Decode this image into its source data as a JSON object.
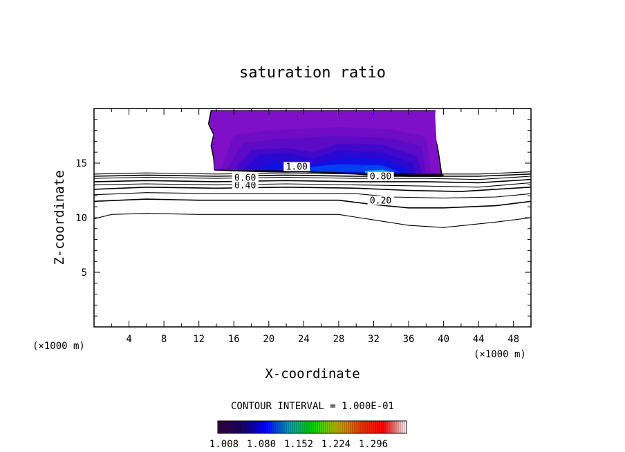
{
  "chart_data": {
    "type": "contour",
    "title": "saturation ratio",
    "xlabel": "X-coordinate",
    "ylabel": "Z-coordinate",
    "x_unit": "(×1000 m)",
    "z_unit": "(×1000 m)",
    "xlim": [
      0,
      50
    ],
    "ylim": [
      0,
      20
    ],
    "x_ticks": [
      "4",
      "8",
      "12",
      "16",
      "20",
      "24",
      "28",
      "32",
      "36",
      "40",
      "44",
      "48"
    ],
    "y_ticks": [
      "5",
      "10",
      "15"
    ],
    "contour_interval_text": "CONTOUR INTERVAL = 1.000E-01",
    "colorbar": {
      "tick_labels": [
        "1.008",
        "1.080",
        "1.152",
        "1.224",
        "1.296"
      ],
      "colors": [
        "#3a003a",
        "#1a0070",
        "#0000ff",
        "#00a0c0",
        "#00e000",
        "#c0c000",
        "#ff4000",
        "#ff0000",
        "#ffffff"
      ]
    },
    "contour_lines": [
      {
        "level": 0.1,
        "label": "",
        "points": [
          [
            0,
            9.9
          ],
          [
            2,
            10.3
          ],
          [
            6,
            10.4
          ],
          [
            12,
            10.3
          ],
          [
            20,
            10.3
          ],
          [
            28,
            10.3
          ],
          [
            32,
            9.8
          ],
          [
            36,
            9.3
          ],
          [
            40,
            9.1
          ],
          [
            46,
            9.6
          ],
          [
            50,
            10.0
          ]
        ]
      },
      {
        "level": 0.2,
        "label": "0.20",
        "points": [
          [
            0,
            11.5
          ],
          [
            6,
            11.7
          ],
          [
            12,
            11.6
          ],
          [
            20,
            11.6
          ],
          [
            28,
            11.6
          ],
          [
            32,
            11.2
          ],
          [
            36,
            10.9
          ],
          [
            40,
            10.9
          ],
          [
            46,
            11.1
          ],
          [
            50,
            11.5
          ]
        ]
      },
      {
        "level": 0.3,
        "label": "",
        "points": [
          [
            0,
            12.1
          ],
          [
            6,
            12.3
          ],
          [
            14,
            12.2
          ],
          [
            22,
            12.2
          ],
          [
            30,
            12.2
          ],
          [
            34,
            11.9
          ],
          [
            40,
            11.8
          ],
          [
            46,
            11.9
          ],
          [
            50,
            12.2
          ]
        ]
      },
      {
        "level": 0.4,
        "label": "0.40",
        "points": [
          [
            0,
            12.6
          ],
          [
            6,
            12.8
          ],
          [
            14,
            12.7
          ],
          [
            22,
            12.8
          ],
          [
            30,
            12.7
          ],
          [
            36,
            12.5
          ],
          [
            42,
            12.4
          ],
          [
            50,
            12.8
          ]
        ]
      },
      {
        "level": 0.5,
        "label": "",
        "points": [
          [
            0,
            13.0
          ],
          [
            6,
            13.1
          ],
          [
            14,
            13.0
          ],
          [
            22,
            13.1
          ],
          [
            30,
            13.0
          ],
          [
            38,
            12.9
          ],
          [
            44,
            12.8
          ],
          [
            50,
            13.2
          ]
        ]
      },
      {
        "level": 0.6,
        "label": "0.60",
        "points": [
          [
            0,
            13.3
          ],
          [
            6,
            13.4
          ],
          [
            14,
            13.3
          ],
          [
            22,
            13.4
          ],
          [
            30,
            13.3
          ],
          [
            38,
            13.3
          ],
          [
            44,
            13.2
          ],
          [
            50,
            13.5
          ]
        ]
      },
      {
        "level": 0.7,
        "label": "",
        "points": [
          [
            0,
            13.6
          ],
          [
            6,
            13.7
          ],
          [
            14,
            13.6
          ],
          [
            22,
            13.7
          ],
          [
            30,
            13.6
          ],
          [
            38,
            13.6
          ],
          [
            44,
            13.5
          ],
          [
            50,
            13.8
          ]
        ]
      },
      {
        "level": 0.8,
        "label": "0.80",
        "points": [
          [
            0,
            13.8
          ],
          [
            6,
            13.9
          ],
          [
            14,
            13.8
          ],
          [
            22,
            13.9
          ],
          [
            30,
            13.8
          ],
          [
            38,
            13.8
          ],
          [
            44,
            13.8
          ],
          [
            50,
            14.0
          ]
        ]
      },
      {
        "level": 0.9,
        "label": "",
        "points": [
          [
            0,
            14.0
          ],
          [
            6,
            14.1
          ],
          [
            14,
            14.0
          ],
          [
            22,
            14.1
          ],
          [
            30,
            14.0
          ],
          [
            38,
            14.0
          ],
          [
            44,
            14.0
          ],
          [
            50,
            14.2
          ]
        ]
      },
      {
        "level": 1.0,
        "label": "1.00",
        "points": [
          [
            13.8,
            14.4
          ],
          [
            16,
            14.3
          ],
          [
            20,
            14.3
          ],
          [
            24,
            14.2
          ],
          [
            28,
            14.1
          ],
          [
            32,
            14.0
          ],
          [
            36,
            13.9
          ],
          [
            40,
            13.9
          ]
        ]
      }
    ],
    "contour_labels": [
      {
        "text": "0.20",
        "x": 32.8,
        "y": 11.3
      },
      {
        "text": "0.40",
        "x": 17.3,
        "y": 12.7
      },
      {
        "text": "0.60",
        "x": 17.3,
        "y": 13.4
      },
      {
        "text": "0.80",
        "x": 32.8,
        "y": 13.5
      },
      {
        "text": "1.00",
        "x": 23.2,
        "y": 14.4
      }
    ],
    "shaded_region": {
      "boundary": [
        [
          13.8,
          14.4
        ],
        [
          13.7,
          15.4
        ],
        [
          13.4,
          16.6
        ],
        [
          13.7,
          17.6
        ],
        [
          13.1,
          18.6
        ],
        [
          13.4,
          19.8
        ],
        [
          39.0,
          19.8
        ],
        [
          38.8,
          18.0
        ],
        [
          39.3,
          16.5
        ],
        [
          39.6,
          15.0
        ],
        [
          39.8,
          13.8
        ],
        [
          36,
          13.8
        ],
        [
          32,
          13.9
        ],
        [
          28,
          14.1
        ],
        [
          24,
          14.2
        ],
        [
          20,
          14.2
        ],
        [
          16,
          14.3
        ]
      ],
      "bands": [
        {
          "value": 1.008,
          "color": "#7f10c8",
          "ring": [
            [
              13.6,
              19.8
            ],
            [
              39.0,
              19.8
            ],
            [
              39.4,
              14.0
            ],
            [
              13.8,
              14.3
            ]
          ]
        },
        {
          "value": 1.03,
          "color": "#6f0cc6",
          "ring": [
            [
              16,
              17.6
            ],
            [
              20,
              18.0
            ],
            [
              28,
              18.3
            ],
            [
              34,
              18.1
            ],
            [
              38,
              17.4
            ],
            [
              38.6,
              14.1
            ],
            [
              14.5,
              14.4
            ]
          ]
        },
        {
          "value": 1.05,
          "color": "#5c0ac6",
          "ring": [
            [
              17,
              16.8
            ],
            [
              21,
              17.2
            ],
            [
              28,
              17.5
            ],
            [
              34,
              17.3
            ],
            [
              37.5,
              16.5
            ],
            [
              38,
              14.1
            ],
            [
              15.2,
              14.4
            ]
          ]
        },
        {
          "value": 1.07,
          "color": "#4208ca",
          "ring": [
            [
              18,
              16.2
            ],
            [
              22,
              16.4
            ],
            [
              25,
              16.0
            ],
            [
              28,
              16.8
            ],
            [
              33,
              16.7
            ],
            [
              37,
              15.6
            ],
            [
              37.5,
              14.1
            ],
            [
              16,
              14.4
            ]
          ]
        },
        {
          "value": 1.09,
          "color": "#2a08d2",
          "ring": [
            [
              19,
              15.8
            ],
            [
              22.5,
              15.9
            ],
            [
              25,
              15.4
            ],
            [
              28,
              16.2
            ],
            [
              33,
              16.0
            ],
            [
              36.5,
              15.0
            ],
            [
              36.8,
              14.0
            ],
            [
              17,
              14.4
            ]
          ]
        },
        {
          "value": 1.11,
          "color": "#1210e0",
          "ring": [
            [
              20.5,
              15.2
            ],
            [
              25,
              14.9
            ],
            [
              29,
              15.6
            ],
            [
              33,
              15.4
            ],
            [
              36,
              14.4
            ],
            [
              35.8,
              14.0
            ],
            [
              18.5,
              14.3
            ]
          ]
        },
        {
          "value": 1.13,
          "color": "#0040f0",
          "ring": [
            [
              24,
              14.6
            ],
            [
              28,
              14.9
            ],
            [
              33,
              14.8
            ],
            [
              35,
              14.2
            ],
            [
              22,
              14.2
            ]
          ]
        },
        {
          "value": 1.15,
          "color": "#00a8f0",
          "ring": [
            [
              31,
              14.3
            ],
            [
              33,
              14.4
            ],
            [
              34.4,
              14.1
            ],
            [
              31,
              14.05
            ]
          ]
        }
      ]
    }
  }
}
